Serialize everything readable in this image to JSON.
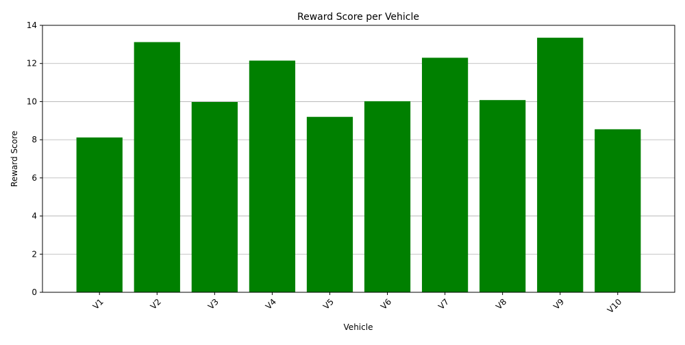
{
  "chart_data": {
    "type": "bar",
    "title": "Reward Score per Vehicle",
    "xlabel": "Vehicle",
    "ylabel": "Reward Score",
    "categories": [
      "V1",
      "V2",
      "V3",
      "V4",
      "V5",
      "V6",
      "V7",
      "V8",
      "V9",
      "V10"
    ],
    "values": [
      8.12,
      13.12,
      9.98,
      12.15,
      9.2,
      10.02,
      12.3,
      10.08,
      13.35,
      8.55
    ],
    "ylim": [
      0,
      14
    ],
    "yticks": [
      0,
      2,
      4,
      6,
      8,
      10,
      12,
      14
    ],
    "grid": "y",
    "bar_color": "#008000",
    "grid_color": "#b0b0b0",
    "xtick_rotation_deg": 45
  }
}
